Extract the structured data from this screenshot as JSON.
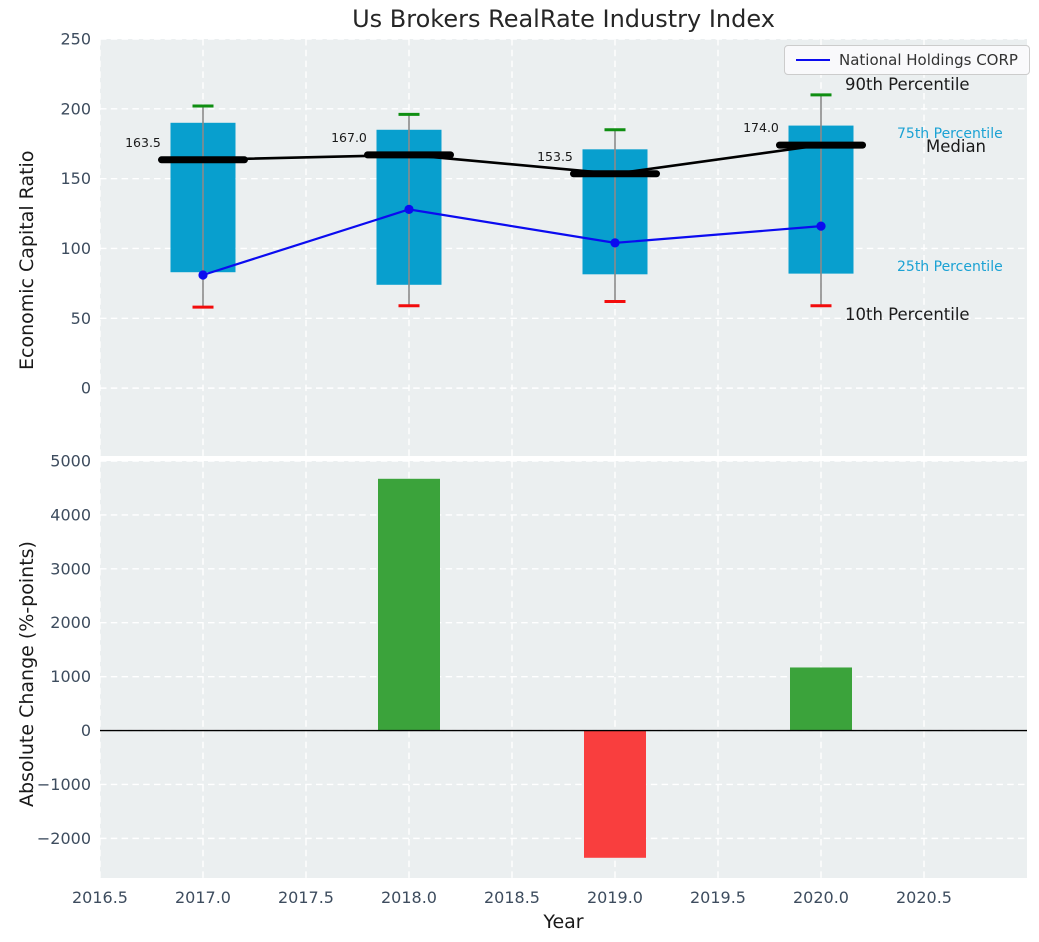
{
  "title": "Us Brokers RealRate Industry Index",
  "legend": {
    "label": "National Holdings CORP"
  },
  "axes": {
    "top": {
      "ylabel": "Economic Capital Ratio"
    },
    "bottom": {
      "ylabel": "Absolute Change (%-points)",
      "xlabel": "Year"
    }
  },
  "annotations": {
    "p90": {
      "text": "90th Percentile"
    },
    "p75": {
      "text": "75th Percentile"
    },
    "median": {
      "text": "Median"
    },
    "p25": {
      "text": "25th Percentile"
    },
    "p10": {
      "text": "10th Percentile"
    }
  },
  "colors": {
    "box_fill": "#089fce",
    "median_line": "#000000",
    "cap_high": "#0e8e11",
    "cap_low": "#f20c0c",
    "whisker": "#8a8a8a",
    "company_line": "#0b0bf0",
    "bar_positive": "#3ba33b",
    "bar_negative": "#f93e3e",
    "axes_bg": "#ebeff0",
    "grid": "#ffffff",
    "tick_label": "#3d4c5e",
    "text_dark": "#262626",
    "annotation_accent": "#1ba2d4"
  },
  "chart_data": [
    {
      "type": "box-percentile+line",
      "title": "Us Brokers RealRate Industry Index",
      "ylabel": "Economic Capital Ratio",
      "x": [
        2017,
        2018,
        2019,
        2020
      ],
      "percentiles": {
        "p90": [
          202,
          196,
          185,
          210
        ],
        "p75": [
          190,
          185,
          171,
          188
        ],
        "median": [
          163.5,
          167.0,
          153.5,
          174.0
        ],
        "p25": [
          83,
          74,
          81.5,
          82
        ],
        "p10": [
          58,
          59,
          62,
          59
        ]
      },
      "median_labels": [
        "163.5",
        "167.0",
        "153.5",
        "174.0"
      ],
      "series": [
        {
          "name": "National Holdings CORP",
          "x": [
            2017,
            2018,
            2019,
            2020
          ],
          "values": [
            81,
            128,
            104,
            116
          ]
        }
      ],
      "ylim": [
        -48.6,
        250
      ],
      "yticks": [
        0,
        50,
        100,
        150,
        200,
        250
      ],
      "ytick_labels": [
        "0",
        "50",
        "100",
        "150",
        "200",
        "250"
      ],
      "grid": true,
      "legend_position": "upper right"
    },
    {
      "type": "bar",
      "ylabel": "Absolute Change (%-points)",
      "xlabel": "Year",
      "categories": [
        2018,
        2019,
        2020
      ],
      "values": [
        4670,
        -2360,
        1170
      ],
      "bar_colors": [
        "positive",
        "negative",
        "positive"
      ],
      "ylim": [
        -2735,
        5000
      ],
      "yticks": [
        -2000,
        -1000,
        0,
        1000,
        2000,
        3000,
        4000,
        5000
      ],
      "ytick_labels": [
        "−2000",
        "−1000",
        "0",
        "1000",
        "2000",
        "3000",
        "4000",
        "5000"
      ],
      "xlim": [
        2016.5,
        2021.0
      ],
      "xticks": [
        2016.5,
        2017.0,
        2017.5,
        2018.0,
        2018.5,
        2019.0,
        2019.5,
        2020.0,
        2020.5
      ],
      "xtick_labels": [
        "2016.5",
        "2017.0",
        "2017.5",
        "2018.0",
        "2018.5",
        "2019.0",
        "2019.5",
        "2020.0",
        "2020.5"
      ],
      "grid": true
    }
  ]
}
